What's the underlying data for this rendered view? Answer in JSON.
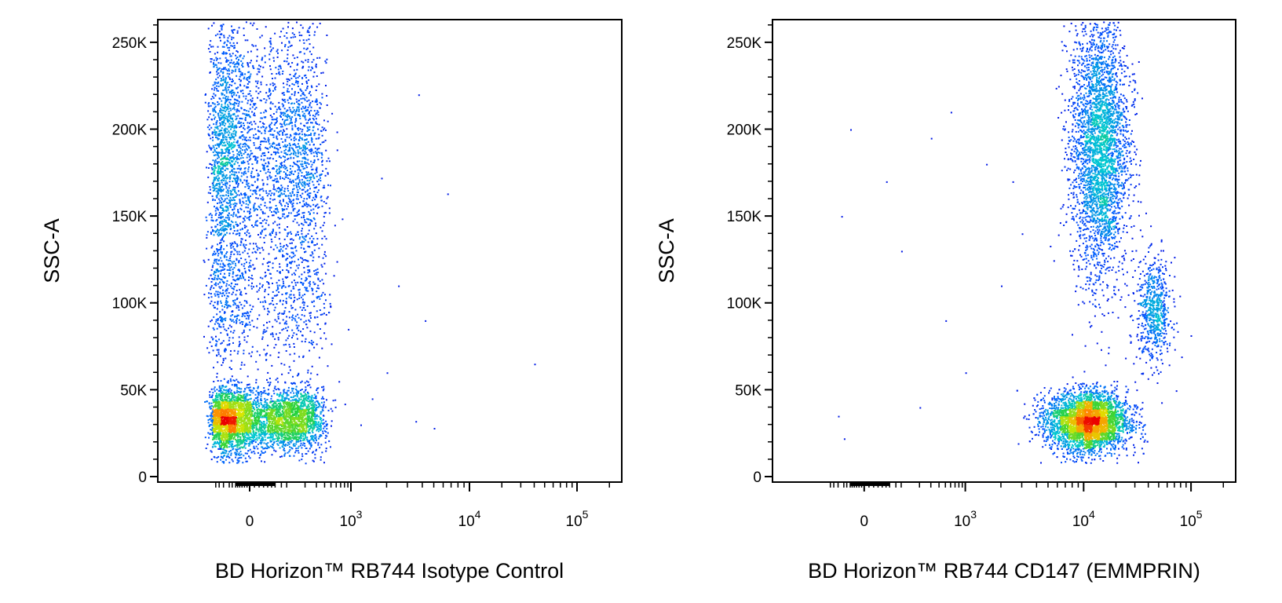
{
  "chart_data": [
    {
      "type": "scatter",
      "subtype": "flow-cytometry-density-dot-plot",
      "ylabel": "SSC-A",
      "xlabel": "BD Horizon™ RB744 Isotype Control",
      "y_ticks": [
        {
          "value": 0,
          "label": "0"
        },
        {
          "value": 50000,
          "label": "50K"
        },
        {
          "value": 100000,
          "label": "100K"
        },
        {
          "value": 150000,
          "label": "150K"
        },
        {
          "value": 200000,
          "label": "200K"
        },
        {
          "value": 250000,
          "label": "250K"
        }
      ],
      "x_ticks": [
        {
          "value": 0,
          "base": "0",
          "exp": ""
        },
        {
          "value": 1000,
          "base": "10",
          "exp": "3"
        },
        {
          "value": 10000,
          "base": "10",
          "exp": "4"
        },
        {
          "value": 100000,
          "base": "10",
          "exp": "5"
        }
      ],
      "x_scale": "biexponential",
      "xlim": [
        -300,
        200000
      ],
      "ylim": [
        0,
        262144
      ],
      "populations": [
        {
          "x_center": 0,
          "x_spread": 150,
          "y_center": 33000,
          "y_spread": 9000,
          "count": 4200,
          "shape": "blob"
        },
        {
          "x_center": 0,
          "x_spread": 170,
          "y_center": 185000,
          "y_spread": 40000,
          "count": 3400,
          "shape": "vertical-band"
        },
        {
          "x_center": 10,
          "x_spread": 180,
          "y_center": 100000,
          "y_spread": 20000,
          "count": 700,
          "shape": "vertical-band"
        }
      ],
      "stray_points": [
        [
          650,
          55000
        ],
        [
          800,
          42000
        ],
        [
          1200,
          30000
        ],
        [
          2000,
          60000
        ],
        [
          3500,
          32000
        ],
        [
          5000,
          28000
        ],
        [
          3700,
          220000
        ],
        [
          6500,
          163000
        ],
        [
          1800,
          172000
        ],
        [
          40000,
          65000
        ],
        [
          2500,
          110000
        ],
        [
          900,
          85000
        ],
        [
          1500,
          45000
        ],
        [
          4200,
          90000
        ]
      ]
    },
    {
      "type": "scatter",
      "subtype": "flow-cytometry-density-dot-plot",
      "ylabel": "SSC-A",
      "xlabel": "BD Horizon™ RB744 CD147 (EMMPRIN)",
      "y_ticks": [
        {
          "value": 0,
          "label": "0"
        },
        {
          "value": 50000,
          "label": "50K"
        },
        {
          "value": 100000,
          "label": "100K"
        },
        {
          "value": 150000,
          "label": "150K"
        },
        {
          "value": 200000,
          "label": "200K"
        },
        {
          "value": 250000,
          "label": "250K"
        }
      ],
      "x_ticks": [
        {
          "value": 0,
          "base": "0",
          "exp": ""
        },
        {
          "value": 1000,
          "base": "10",
          "exp": "3"
        },
        {
          "value": 10000,
          "base": "10",
          "exp": "4"
        },
        {
          "value": 100000,
          "base": "10",
          "exp": "5"
        }
      ],
      "x_scale": "biexponential",
      "xlim": [
        -300,
        200000
      ],
      "ylim": [
        0,
        262144
      ],
      "populations": [
        {
          "x_center": 11000,
          "x_spread": 0.18,
          "y_center": 32000,
          "y_spread": 8500,
          "count": 4200,
          "shape": "blob"
        },
        {
          "x_center": 14000,
          "x_spread": 0.13,
          "y_center": 190000,
          "y_spread": 38000,
          "count": 3300,
          "shape": "vertical-band"
        },
        {
          "x_center": 45000,
          "x_spread": 0.08,
          "y_center": 95000,
          "y_spread": 15000,
          "count": 650,
          "shape": "blob"
        }
      ],
      "stray_points": [
        [
          -150,
          35000
        ],
        [
          -100,
          22000
        ],
        [
          -60,
          200000
        ],
        [
          -120,
          150000
        ],
        [
          50,
          170000
        ],
        [
          100,
          130000
        ],
        [
          300,
          195000
        ],
        [
          600,
          210000
        ],
        [
          1500,
          180000
        ],
        [
          2500,
          170000
        ],
        [
          3000,
          140000
        ],
        [
          500,
          90000
        ],
        [
          1000,
          60000
        ],
        [
          200,
          40000
        ],
        [
          2000,
          110000
        ]
      ]
    }
  ]
}
